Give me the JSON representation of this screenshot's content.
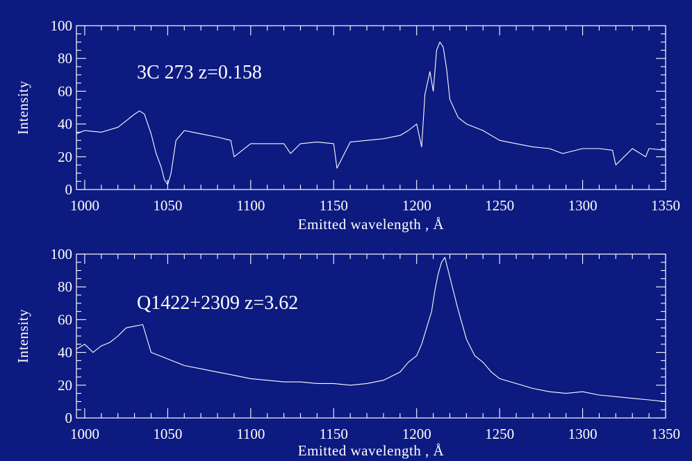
{
  "background_color": "#0d1a80",
  "foreground_color": "#ffffff",
  "chart_data": [
    {
      "type": "line",
      "annotation": "3C 273  z=0.158",
      "xlabel": "Emitted wavelength , Å",
      "ylabel": "Intensity",
      "xlim": [
        995,
        1350
      ],
      "ylim": [
        0,
        100
      ],
      "x_ticks": [
        1000,
        1050,
        1100,
        1150,
        1200,
        1250,
        1300,
        1350
      ],
      "y_ticks": [
        0,
        20,
        40,
        60,
        80,
        100
      ],
      "grid": false,
      "series": [
        {
          "x": [
            995,
            1000,
            1010,
            1020,
            1025,
            1030,
            1033,
            1036,
            1040,
            1043,
            1046,
            1048,
            1050,
            1052,
            1055,
            1060,
            1065,
            1070,
            1080,
            1088,
            1090,
            1100,
            1110,
            1120,
            1124,
            1130,
            1140,
            1150,
            1152,
            1160,
            1170,
            1180,
            1190,
            1195,
            1200,
            1203,
            1205,
            1208,
            1210,
            1212,
            1214,
            1216,
            1218,
            1220,
            1225,
            1230,
            1240,
            1250,
            1260,
            1270,
            1280,
            1288,
            1300,
            1310,
            1318,
            1320,
            1330,
            1338,
            1340,
            1350
          ],
          "y": [
            34,
            36,
            35,
            38,
            42,
            46,
            48,
            46,
            34,
            22,
            14,
            6,
            3,
            10,
            30,
            36,
            35,
            34,
            32,
            30,
            20,
            28,
            28,
            28,
            22,
            28,
            29,
            28,
            13,
            29,
            30,
            31,
            33,
            36,
            40,
            26,
            58,
            72,
            60,
            85,
            90,
            87,
            74,
            55,
            44,
            40,
            36,
            30,
            28,
            26,
            25,
            22,
            25,
            25,
            24,
            15,
            25,
            20,
            25,
            24
          ]
        }
      ]
    },
    {
      "type": "line",
      "annotation": "Q1422+2309  z=3.62",
      "xlabel": "Emitted wavelength , Å",
      "ylabel": "Intensity",
      "xlim": [
        995,
        1350
      ],
      "ylim": [
        0,
        100
      ],
      "x_ticks": [
        1000,
        1050,
        1100,
        1150,
        1200,
        1250,
        1300,
        1350
      ],
      "y_ticks": [
        0,
        20,
        40,
        60,
        80,
        100
      ],
      "grid": false,
      "series": [
        {
          "x": [
            995,
            1000,
            1005,
            1010,
            1015,
            1020,
            1025,
            1030,
            1035,
            1040,
            1045,
            1050,
            1060,
            1070,
            1080,
            1090,
            1100,
            1110,
            1120,
            1130,
            1140,
            1150,
            1160,
            1170,
            1180,
            1190,
            1195,
            1200,
            1203,
            1206,
            1209,
            1211,
            1213,
            1215,
            1217,
            1219,
            1222,
            1225,
            1230,
            1235,
            1240,
            1245,
            1250,
            1260,
            1270,
            1280,
            1290,
            1300,
            1310,
            1320,
            1330,
            1340,
            1350
          ],
          "y": [
            42,
            45,
            40,
            44,
            46,
            50,
            55,
            56,
            57,
            40,
            38,
            36,
            32,
            30,
            28,
            26,
            24,
            23,
            22,
            22,
            21,
            21,
            20,
            21,
            23,
            28,
            34,
            38,
            45,
            55,
            65,
            78,
            88,
            95,
            98,
            90,
            78,
            66,
            48,
            38,
            34,
            28,
            24,
            21,
            18,
            16,
            15,
            16,
            14,
            13,
            12,
            11,
            10
          ]
        }
      ]
    }
  ]
}
